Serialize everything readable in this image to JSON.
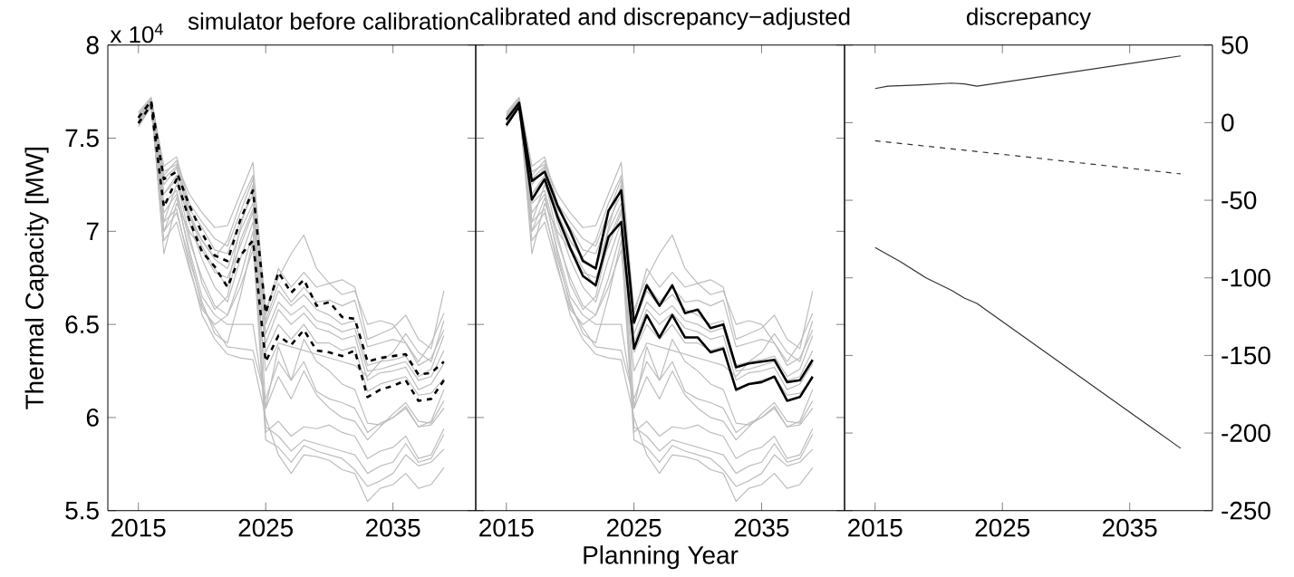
{
  "chart_data": [
    {
      "type": "line",
      "title": "simulator before calibration",
      "ylabel": "Thermal Capacity [MW]",
      "annotations": [
        "x 10$^{4}$"
      ],
      "x": [
        2015,
        2016,
        2017,
        2018,
        2019,
        2020,
        2021,
        2022,
        2023,
        2024,
        2025,
        2026,
        2027,
        2028,
        2029,
        2030,
        2031,
        2032,
        2033,
        2034,
        2035,
        2036,
        2037,
        2038,
        2039
      ],
      "xlim": [
        2012.6,
        2041.5
      ],
      "xticks": [
        2015,
        2025,
        2035
      ],
      "ylim": [
        5.5,
        8
      ],
      "yticks": [
        5.5,
        6,
        6.5,
        7,
        7.5,
        8
      ],
      "series": [
        {
          "color": "#bdbdbd",
          "values": [
            7.64,
            7.72,
            7.35,
            7.4,
            7.15,
            7.05,
            6.96,
            6.92,
            7.1,
            7.28,
            6.58,
            6.75,
            6.88,
            6.98,
            6.8,
            6.72,
            6.74,
            6.7,
            6.42,
            6.45,
            6.48,
            6.55,
            6.42,
            6.37,
            6.68
          ]
        },
        {
          "color": "#bdbdbd",
          "values": [
            7.62,
            7.71,
            7.32,
            7.36,
            7.2,
            7.1,
            7.02,
            7.03,
            7.2,
            7.37,
            6.55,
            6.8,
            6.7,
            6.78,
            6.7,
            6.72,
            6.66,
            6.68,
            6.5,
            6.52,
            6.5,
            6.4,
            6.3,
            6.4,
            6.56
          ]
        },
        {
          "color": "#bdbdbd",
          "values": [
            7.6,
            7.7,
            7.3,
            7.38,
            7.12,
            7.02,
            6.9,
            6.88,
            7.05,
            7.2,
            6.5,
            6.68,
            6.6,
            6.66,
            6.58,
            6.55,
            6.5,
            6.52,
            6.28,
            6.3,
            6.31,
            6.33,
            6.22,
            6.26,
            6.44
          ]
        },
        {
          "color": "#bdbdbd",
          "values": [
            7.58,
            7.69,
            7.05,
            7.25,
            7.08,
            6.95,
            6.85,
            6.8,
            7.0,
            7.15,
            6.45,
            6.62,
            6.55,
            6.6,
            6.52,
            6.5,
            6.46,
            6.48,
            6.25,
            6.26,
            6.28,
            6.3,
            6.2,
            6.22,
            6.36
          ]
        },
        {
          "color": "#bdbdbd",
          "values": [
            7.61,
            7.7,
            6.88,
            7.15,
            7.0,
            6.9,
            6.78,
            6.75,
            6.92,
            7.1,
            6.4,
            6.58,
            6.5,
            6.56,
            6.48,
            6.46,
            6.42,
            6.44,
            6.2,
            6.24,
            6.25,
            6.27,
            6.15,
            6.18,
            6.29
          ]
        },
        {
          "color": "#bdbdbd",
          "values": [
            7.57,
            7.68,
            7.2,
            7.3,
            7.05,
            6.85,
            6.7,
            6.62,
            6.85,
            7.05,
            6.35,
            6.5,
            6.42,
            6.5,
            6.4,
            6.4,
            6.36,
            6.38,
            6.14,
            6.18,
            6.2,
            6.22,
            6.12,
            6.13,
            6.21
          ]
        },
        {
          "color": "#bdbdbd",
          "values": [
            7.59,
            7.69,
            7.15,
            7.22,
            6.95,
            6.75,
            6.6,
            6.55,
            6.7,
            6.9,
            6.25,
            6.4,
            6.38,
            6.36,
            6.34,
            6.32,
            6.3,
            6.28,
            6.22,
            6.3,
            6.35,
            6.45,
            6.35,
            6.3,
            6.52
          ]
        },
        {
          "color": "#bdbdbd",
          "values": [
            7.56,
            7.67,
            7.0,
            7.18,
            6.9,
            6.65,
            6.55,
            6.5,
            6.5,
            6.5,
            6.05,
            6.22,
            6.1,
            6.25,
            6.12,
            6.05,
            6.0,
            5.98,
            5.88,
            5.95,
            6.02,
            6.08,
            5.98,
            5.97,
            6.09
          ]
        },
        {
          "color": "#bdbdbd",
          "values": [
            7.6,
            7.7,
            7.1,
            7.2,
            6.88,
            6.6,
            6.48,
            6.38,
            6.37,
            6.36,
            6.1,
            6.3,
            6.2,
            6.3,
            6.14,
            6.1,
            6.08,
            6.05,
            5.92,
            5.97,
            6.0,
            6.05,
            5.95,
            5.98,
            6.15
          ]
        },
        {
          "color": "#bdbdbd",
          "values": [
            7.62,
            7.71,
            7.2,
            7.28,
            6.98,
            6.72,
            6.58,
            6.65,
            6.95,
            7.12,
            5.92,
            5.98,
            5.9,
            5.95,
            5.94,
            5.96,
            5.92,
            5.9,
            5.78,
            5.82,
            5.84,
            5.9,
            5.78,
            5.8,
            5.94
          ]
        },
        {
          "color": "#bdbdbd",
          "values": [
            7.58,
            7.68,
            7.0,
            7.1,
            6.85,
            6.62,
            6.45,
            6.4,
            6.65,
            6.95,
            5.88,
            5.84,
            5.76,
            5.85,
            5.82,
            5.8,
            5.78,
            5.72,
            5.63,
            5.66,
            5.7,
            5.8,
            5.74,
            5.76,
            5.83
          ]
        },
        {
          "color": "#bdbdbd",
          "values": [
            7.57,
            7.67,
            6.95,
            7.05,
            6.8,
            6.58,
            6.5,
            6.55,
            6.75,
            7.0,
            5.95,
            5.9,
            5.82,
            5.88,
            5.86,
            5.84,
            5.82,
            5.8,
            5.7,
            5.74,
            5.76,
            5.86,
            5.76,
            5.78,
            5.91
          ]
        },
        {
          "color": "#bdbdbd",
          "values": [
            7.59,
            7.69,
            7.05,
            7.12,
            6.82,
            6.55,
            6.42,
            6.34,
            6.32,
            6.31,
            6.0,
            5.8,
            5.7,
            5.8,
            5.79,
            5.77,
            5.72,
            5.7,
            5.55,
            5.62,
            5.64,
            5.7,
            5.62,
            5.64,
            5.73
          ]
        },
        {
          "color": "#bdbdbd",
          "values": [
            7.63,
            7.71,
            7.25,
            7.34,
            7.08,
            6.92,
            6.8,
            6.7,
            7.02,
            7.25,
            6.05,
            6.38,
            6.2,
            6.42,
            6.3,
            6.25,
            6.18,
            6.15,
            5.97,
            5.96,
            6.0,
            6.06,
            5.95,
            5.96,
            6.05
          ]
        },
        {
          "color": "#bdbdbd",
          "values": [
            7.61,
            7.7,
            7.28,
            7.35,
            7.1,
            6.95,
            6.86,
            6.95,
            7.15,
            7.3,
            6.52,
            6.72,
            6.62,
            6.7,
            6.62,
            6.63,
            6.6,
            6.63,
            6.38,
            6.4,
            6.42,
            6.4,
            6.28,
            6.32,
            6.47
          ]
        },
        {
          "color": "#000000",
          "line_style": "dashed",
          "values": [
            7.61,
            7.7,
            7.28,
            7.32,
            7.14,
            6.99,
            6.87,
            6.84,
            7.06,
            7.22,
            6.56,
            6.78,
            6.67,
            6.74,
            6.6,
            6.62,
            6.54,
            6.53,
            6.3,
            6.32,
            6.33,
            6.34,
            6.23,
            6.24,
            6.3
          ]
        },
        {
          "color": "#000000",
          "line_style": "dashed",
          "values": [
            7.58,
            7.68,
            7.13,
            7.28,
            7.06,
            6.89,
            6.81,
            6.7,
            6.87,
            6.95,
            6.3,
            6.44,
            6.39,
            6.47,
            6.36,
            6.35,
            6.33,
            6.36,
            6.11,
            6.15,
            6.17,
            6.2,
            6.09,
            6.1,
            6.2
          ]
        }
      ]
    },
    {
      "type": "line",
      "title": "calibrated and discrepancy−adjusted",
      "xlabel": "Planning Year",
      "tick_labels": "x",
      "x": [
        2015,
        2016,
        2017,
        2018,
        2019,
        2020,
        2021,
        2022,
        2023,
        2024,
        2025,
        2026,
        2027,
        2028,
        2029,
        2030,
        2031,
        2032,
        2033,
        2034,
        2035,
        2036,
        2037,
        2038,
        2039
      ],
      "xlim": [
        2012.6,
        2041.5
      ],
      "xticks": [
        2015,
        2025,
        2035
      ],
      "ylim": [
        5.5,
        8
      ],
      "yticks": [
        5.5,
        6,
        6.5,
        7,
        7.5,
        8
      ],
      "series": [
        {
          "color": "#bdbdbd",
          "values": [
            7.64,
            7.72,
            7.35,
            7.4,
            7.15,
            7.05,
            6.96,
            6.92,
            7.1,
            7.28,
            6.58,
            6.75,
            6.88,
            6.98,
            6.8,
            6.72,
            6.74,
            6.7,
            6.42,
            6.45,
            6.48,
            6.55,
            6.42,
            6.37,
            6.68
          ]
        },
        {
          "color": "#bdbdbd",
          "values": [
            7.62,
            7.71,
            7.32,
            7.36,
            7.2,
            7.1,
            7.02,
            7.03,
            7.2,
            7.37,
            6.55,
            6.8,
            6.7,
            6.78,
            6.7,
            6.72,
            6.66,
            6.68,
            6.5,
            6.52,
            6.5,
            6.4,
            6.3,
            6.4,
            6.56
          ]
        },
        {
          "color": "#bdbdbd",
          "values": [
            7.6,
            7.7,
            7.3,
            7.38,
            7.12,
            7.02,
            6.9,
            6.88,
            7.05,
            7.2,
            6.5,
            6.68,
            6.6,
            6.66,
            6.58,
            6.55,
            6.5,
            6.52,
            6.28,
            6.3,
            6.31,
            6.33,
            6.22,
            6.26,
            6.44
          ]
        },
        {
          "color": "#bdbdbd",
          "values": [
            7.58,
            7.69,
            7.05,
            7.25,
            7.08,
            6.95,
            6.85,
            6.8,
            7.0,
            7.15,
            6.45,
            6.62,
            6.55,
            6.6,
            6.52,
            6.5,
            6.46,
            6.48,
            6.25,
            6.26,
            6.28,
            6.3,
            6.2,
            6.22,
            6.36
          ]
        },
        {
          "color": "#bdbdbd",
          "values": [
            7.61,
            7.7,
            6.88,
            7.15,
            7.0,
            6.9,
            6.78,
            6.75,
            6.92,
            7.1,
            6.4,
            6.58,
            6.5,
            6.56,
            6.48,
            6.46,
            6.42,
            6.44,
            6.2,
            6.24,
            6.25,
            6.27,
            6.15,
            6.18,
            6.29
          ]
        },
        {
          "color": "#bdbdbd",
          "values": [
            7.57,
            7.68,
            7.2,
            7.3,
            7.05,
            6.85,
            6.7,
            6.62,
            6.85,
            7.05,
            6.35,
            6.5,
            6.42,
            6.5,
            6.4,
            6.4,
            6.36,
            6.38,
            6.14,
            6.18,
            6.2,
            6.22,
            6.12,
            6.13,
            6.21
          ]
        },
        {
          "color": "#bdbdbd",
          "values": [
            7.59,
            7.69,
            7.15,
            7.22,
            6.95,
            6.75,
            6.6,
            6.55,
            6.7,
            6.9,
            6.25,
            6.4,
            6.38,
            6.36,
            6.34,
            6.32,
            6.3,
            6.28,
            6.22,
            6.3,
            6.35,
            6.45,
            6.35,
            6.3,
            6.52
          ]
        },
        {
          "color": "#bdbdbd",
          "values": [
            7.56,
            7.67,
            7.0,
            7.18,
            6.9,
            6.65,
            6.55,
            6.5,
            6.5,
            6.5,
            6.05,
            6.22,
            6.1,
            6.25,
            6.12,
            6.05,
            6.0,
            5.98,
            5.88,
            5.95,
            6.02,
            6.08,
            5.98,
            5.97,
            6.09
          ]
        },
        {
          "color": "#bdbdbd",
          "values": [
            7.6,
            7.7,
            7.1,
            7.2,
            6.88,
            6.6,
            6.48,
            6.38,
            6.37,
            6.36,
            6.1,
            6.3,
            6.2,
            6.3,
            6.14,
            6.1,
            6.08,
            6.05,
            5.92,
            5.97,
            6.0,
            6.05,
            5.95,
            5.98,
            6.15
          ]
        },
        {
          "color": "#bdbdbd",
          "values": [
            7.62,
            7.71,
            7.2,
            7.28,
            6.98,
            6.72,
            6.58,
            6.65,
            6.95,
            7.12,
            5.92,
            5.98,
            5.9,
            5.95,
            5.94,
            5.96,
            5.92,
            5.9,
            5.78,
            5.82,
            5.84,
            5.9,
            5.78,
            5.8,
            5.94
          ]
        },
        {
          "color": "#bdbdbd",
          "values": [
            7.58,
            7.68,
            7.0,
            7.1,
            6.85,
            6.62,
            6.45,
            6.4,
            6.65,
            6.95,
            5.88,
            5.84,
            5.76,
            5.85,
            5.82,
            5.8,
            5.78,
            5.72,
            5.63,
            5.66,
            5.7,
            5.8,
            5.74,
            5.76,
            5.83
          ]
        },
        {
          "color": "#bdbdbd",
          "values": [
            7.57,
            7.67,
            6.95,
            7.05,
            6.8,
            6.58,
            6.5,
            6.55,
            6.75,
            7.0,
            5.95,
            5.9,
            5.82,
            5.88,
            5.86,
            5.84,
            5.82,
            5.8,
            5.7,
            5.74,
            5.76,
            5.86,
            5.76,
            5.78,
            5.91
          ]
        },
        {
          "color": "#bdbdbd",
          "values": [
            7.59,
            7.69,
            7.05,
            7.12,
            6.82,
            6.55,
            6.42,
            6.34,
            6.32,
            6.31,
            6.0,
            5.8,
            5.7,
            5.8,
            5.79,
            5.77,
            5.72,
            5.7,
            5.55,
            5.62,
            5.64,
            5.7,
            5.62,
            5.64,
            5.73
          ]
        },
        {
          "color": "#bdbdbd",
          "values": [
            7.63,
            7.71,
            7.25,
            7.34,
            7.08,
            6.92,
            6.8,
            6.7,
            7.02,
            7.25,
            6.05,
            6.38,
            6.2,
            6.42,
            6.3,
            6.25,
            6.18,
            6.15,
            5.97,
            5.96,
            6.0,
            6.06,
            5.95,
            5.96,
            6.05
          ]
        },
        {
          "color": "#bdbdbd",
          "values": [
            7.61,
            7.7,
            7.28,
            7.35,
            7.1,
            6.95,
            6.86,
            6.95,
            7.15,
            7.3,
            6.52,
            6.72,
            6.62,
            6.7,
            6.62,
            6.63,
            6.6,
            6.63,
            6.38,
            6.4,
            6.42,
            6.4,
            6.28,
            6.32,
            6.47
          ]
        },
        {
          "color": "#000000",
          "values": [
            7.6,
            7.69,
            7.27,
            7.32,
            7.14,
            7.0,
            6.84,
            6.8,
            7.11,
            7.22,
            6.51,
            6.71,
            6.6,
            6.71,
            6.56,
            6.58,
            6.48,
            6.5,
            6.27,
            6.29,
            6.3,
            6.31,
            6.19,
            6.2,
            6.31
          ]
        },
        {
          "color": "#000000",
          "values": [
            7.57,
            7.67,
            7.17,
            7.28,
            7.08,
            6.91,
            6.76,
            6.71,
            6.97,
            7.05,
            6.37,
            6.55,
            6.43,
            6.55,
            6.43,
            6.43,
            6.35,
            6.37,
            6.15,
            6.18,
            6.19,
            6.22,
            6.09,
            6.11,
            6.22
          ]
        }
      ]
    },
    {
      "type": "line",
      "title": "discrepancy",
      "xlim": [
        2012.6,
        2041.5
      ],
      "xticks": [
        2015,
        2025,
        2035
      ],
      "y2lim": [
        -250,
        50
      ],
      "y2ticks": [
        -250,
        -200,
        -150,
        -100,
        -50,
        0,
        50
      ],
      "series": [
        {
          "color": "#333333",
          "axis": "y2",
          "x": [
            2015,
            2016,
            2019,
            2021,
            2022,
            2023,
            2039
          ],
          "values": [
            22,
            23.5,
            24.5,
            25.5,
            25,
            23.5,
            43
          ]
        },
        {
          "color": "#333333",
          "axis": "y2",
          "line_style": "dashed",
          "x": [
            2015,
            2023,
            2039
          ],
          "values": [
            -11.7,
            -18.6,
            -33
          ]
        },
        {
          "color": "#333333",
          "axis": "y2",
          "x": [
            2015,
            2017,
            2019,
            2021,
            2022,
            2023,
            2039
          ],
          "values": [
            -80.4,
            -89.7,
            -100,
            -108,
            -113,
            -116.5,
            -209.8
          ]
        }
      ]
    }
  ]
}
